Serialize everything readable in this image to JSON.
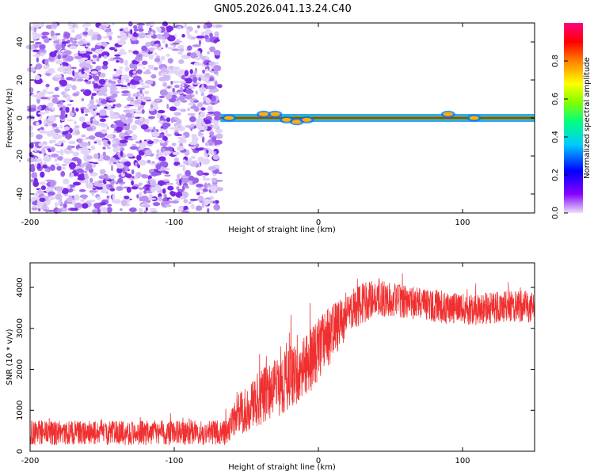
{
  "title": "GN05.2026.041.13.24.C40",
  "chart_data": [
    {
      "type": "heatmap",
      "xlabel": "Height of straight line (km)",
      "ylabel": "Frequency (Hz)",
      "xlim": [
        -200,
        150
      ],
      "ylim": [
        -50,
        50
      ],
      "x_ticks": [
        -200,
        -100,
        0,
        100
      ],
      "y_ticks": [
        -40,
        -20,
        0,
        20,
        40
      ],
      "noise_region_x": [
        -200,
        -68
      ],
      "signal_x_start": -68,
      "signal_line_freq": 0,
      "colorbar": {
        "label": "Normalized spectral amplitude",
        "range": [
          0,
          1
        ],
        "ticks": [
          0.0,
          0.2,
          0.4,
          0.6,
          0.8
        ],
        "colors": [
          "#e8e0f8",
          "#8800ff",
          "#0000ff",
          "#00ccff",
          "#00ff80",
          "#80ff00",
          "#ffff00",
          "#ff8000",
          "#ff0000",
          "#ff0080"
        ]
      }
    },
    {
      "type": "line",
      "xlabel": "Height of straight line (km)",
      "ylabel": "SNR (10 * v/v)",
      "xlim": [
        -200,
        150
      ],
      "ylim": [
        0,
        4600
      ],
      "x_ticks": [
        -200,
        -100,
        0,
        100
      ],
      "y_ticks": [
        0,
        1000,
        2000,
        3000,
        4000
      ],
      "line_color": "#f03030",
      "trend": {
        "x": [
          -200,
          -65,
          -55,
          -40,
          -20,
          -10,
          0,
          10,
          20,
          30,
          40,
          60,
          80,
          100,
          120,
          150
        ],
        "y": [
          450,
          450,
          900,
          1300,
          1800,
          2000,
          2500,
          2900,
          3300,
          3600,
          3750,
          3650,
          3550,
          3450,
          3500,
          3550
        ],
        "amp": [
          300,
          300,
          500,
          700,
          800,
          800,
          800,
          700,
          500,
          500,
          450,
          400,
          400,
          400,
          400,
          400
        ]
      }
    }
  ]
}
